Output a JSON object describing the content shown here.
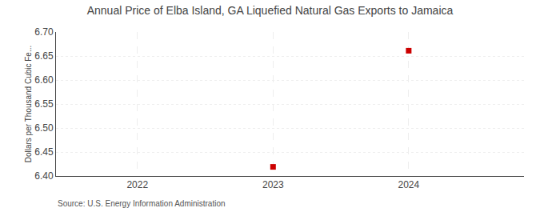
{
  "chart_data": {
    "type": "scatter",
    "title": "Annual Price of Elba Island, GA Liquefied Natural Gas Exports to Jamaica",
    "ylabel": "Dollars per Thousand Cubic Fe...",
    "annotations": [
      "Source: U.S. Energy Information Administration"
    ],
    "x": [
      2023,
      2024
    ],
    "values": [
      6.419,
      6.661
    ],
    "color": "#cc0000",
    "marker": "square",
    "xlim": [
      2021.4,
      2024.85
    ],
    "xticks": [
      2022,
      2023,
      2024
    ],
    "ylim": [
      6.4,
      6.7
    ],
    "yticks": [
      {
        "value": 6.4,
        "label": "6.40"
      },
      6.45,
      {
        "value": 6.5,
        "label": "6.50"
      },
      6.55,
      {
        "value": 6.6,
        "label": "6.60"
      },
      6.65,
      {
        "value": 6.7,
        "label": "6.70"
      }
    ],
    "grid": true
  }
}
